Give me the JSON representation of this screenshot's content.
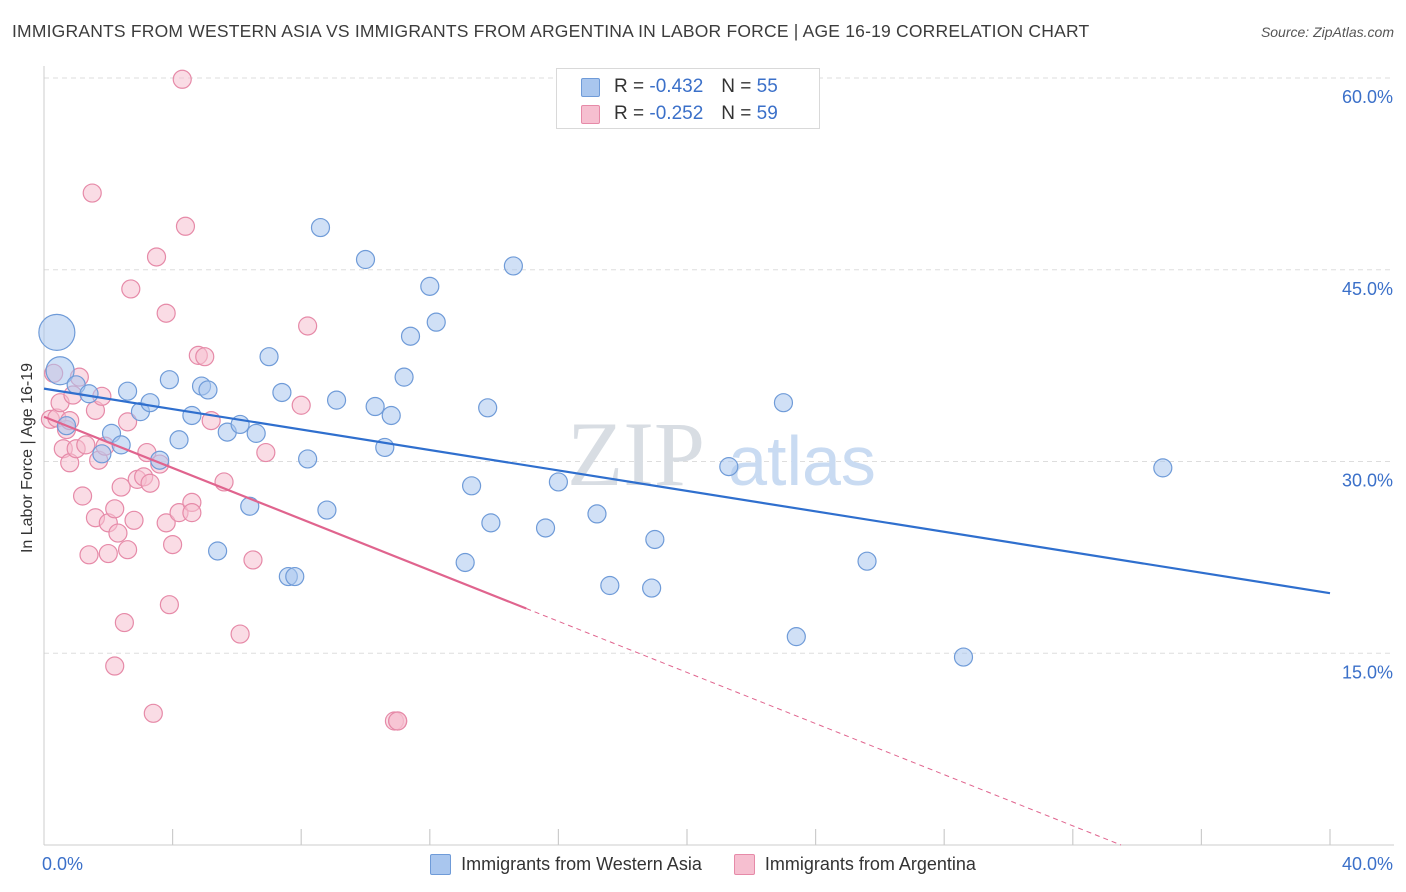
{
  "title": "IMMIGRANTS FROM WESTERN ASIA VS IMMIGRANTS FROM ARGENTINA IN LABOR FORCE | AGE 16-19 CORRELATION CHART",
  "source": "Source: ZipAtlas.com",
  "watermark": {
    "zip": "ZIP",
    "atlas": "atlas"
  },
  "legend_top": {
    "r_label": "R =",
    "n_label": "N =",
    "rows": [
      {
        "r": "-0.432",
        "n": "55"
      },
      {
        "r": "-0.252",
        "n": "59"
      }
    ]
  },
  "colors": {
    "blue_fill": "#a9c6ee",
    "blue_stroke": "#6f9bd8",
    "blue_line": "#2f6fce",
    "pink_fill": "#f6bfd0",
    "pink_stroke": "#e68aa8",
    "pink_line": "#e0648e",
    "grid": "#dddddd",
    "tick_label": "#3b70c9"
  },
  "chart_data": {
    "type": "scatter",
    "title": "IMMIGRANTS FROM WESTERN ASIA VS IMMIGRANTS FROM ARGENTINA IN LABOR FORCE | AGE 16-19 CORRELATION CHART",
    "xlabel": "",
    "ylabel": "In Labor Force | Age 16-19",
    "xlim": [
      0,
      40
    ],
    "ylim": [
      0,
      60
    ],
    "x_tick_labels": [
      "0.0%",
      "40.0%"
    ],
    "y_ticks": [
      15,
      30,
      45,
      60
    ],
    "y_tick_labels": [
      "15.0%",
      "30.0%",
      "45.0%",
      "60.0%"
    ],
    "grid": true,
    "legend_position": "bottom",
    "series": [
      {
        "name": "Immigrants from Western Asia",
        "r": -0.432,
        "n": 55,
        "trend": {
          "x0": 0,
          "y0": 35.7,
          "x1": 40,
          "y1": 19.7
        },
        "points": [
          [
            0.4,
            40.1,
            18
          ],
          [
            0.5,
            37.1,
            14
          ],
          [
            0.7,
            32.8,
            9
          ],
          [
            1.0,
            36.0,
            9
          ],
          [
            1.4,
            35.3,
            9
          ],
          [
            1.8,
            30.6,
            9
          ],
          [
            2.1,
            32.2,
            9
          ],
          [
            2.4,
            31.3,
            9
          ],
          [
            2.6,
            35.5,
            9
          ],
          [
            3.0,
            33.9,
            9
          ],
          [
            3.3,
            34.6,
            9
          ],
          [
            3.6,
            30.1,
            9
          ],
          [
            3.9,
            36.4,
            9
          ],
          [
            4.2,
            31.7,
            9
          ],
          [
            4.6,
            33.6,
            9
          ],
          [
            4.9,
            35.9,
            9
          ],
          [
            5.1,
            35.6,
            9
          ],
          [
            5.4,
            23.0,
            9
          ],
          [
            5.7,
            32.3,
            9
          ],
          [
            6.1,
            32.9,
            9
          ],
          [
            6.4,
            26.5,
            9
          ],
          [
            6.6,
            32.2,
            9
          ],
          [
            7.0,
            38.2,
            9
          ],
          [
            7.4,
            35.4,
            9
          ],
          [
            7.6,
            21.0,
            9
          ],
          [
            7.8,
            21.0,
            9
          ],
          [
            8.2,
            30.2,
            9
          ],
          [
            8.6,
            48.3,
            9
          ],
          [
            8.8,
            26.2,
            9
          ],
          [
            9.1,
            34.8,
            9
          ],
          [
            10.0,
            45.8,
            9
          ],
          [
            10.3,
            34.3,
            9
          ],
          [
            10.6,
            31.1,
            9
          ],
          [
            10.8,
            33.6,
            9
          ],
          [
            11.2,
            36.6,
            9
          ],
          [
            11.4,
            39.8,
            9
          ],
          [
            12.0,
            43.7,
            9
          ],
          [
            12.2,
            40.9,
            9
          ],
          [
            13.1,
            22.1,
            9
          ],
          [
            13.3,
            28.1,
            9
          ],
          [
            13.8,
            34.2,
            9
          ],
          [
            13.9,
            25.2,
            9
          ],
          [
            14.6,
            45.3,
            9
          ],
          [
            15.6,
            24.8,
            9
          ],
          [
            16.0,
            28.4,
            9
          ],
          [
            17.2,
            25.9,
            9
          ],
          [
            17.6,
            20.3,
            9
          ],
          [
            18.9,
            20.1,
            9
          ],
          [
            19.0,
            23.9,
            9
          ],
          [
            21.3,
            29.6,
            9
          ],
          [
            23.0,
            34.6,
            9
          ],
          [
            23.4,
            16.3,
            9
          ],
          [
            25.6,
            22.2,
            9
          ],
          [
            28.6,
            14.7,
            9
          ],
          [
            34.8,
            29.5,
            9
          ]
        ]
      },
      {
        "name": "Immigrants from Argentina",
        "r": -0.252,
        "n": 59,
        "trend": {
          "x0": 0,
          "y0": 33.5,
          "x1": 15.0,
          "y1": 18.5,
          "dash_x1": 40,
          "dash_y1": -6.5
        },
        "points": [
          [
            0.2,
            33.3,
            9
          ],
          [
            0.3,
            36.9,
            9
          ],
          [
            0.4,
            33.4,
            9
          ],
          [
            0.5,
            34.6,
            9
          ],
          [
            0.6,
            31.0,
            9
          ],
          [
            0.7,
            32.5,
            9
          ],
          [
            0.8,
            33.2,
            9
          ],
          [
            0.8,
            29.9,
            9
          ],
          [
            0.9,
            35.2,
            9
          ],
          [
            1.0,
            31.0,
            9
          ],
          [
            1.1,
            36.6,
            9
          ],
          [
            1.2,
            27.3,
            9
          ],
          [
            1.3,
            31.3,
            9
          ],
          [
            1.4,
            22.7,
            9
          ],
          [
            1.5,
            51.0,
            9
          ],
          [
            1.6,
            34.0,
            9
          ],
          [
            1.6,
            25.6,
            9
          ],
          [
            1.7,
            30.1,
            9
          ],
          [
            1.8,
            35.1,
            9
          ],
          [
            1.9,
            31.2,
            9
          ],
          [
            2.0,
            25.2,
            9
          ],
          [
            2.0,
            22.8,
            9
          ],
          [
            2.2,
            26.3,
            9
          ],
          [
            2.2,
            14.0,
            9
          ],
          [
            2.3,
            24.4,
            9
          ],
          [
            2.4,
            28.0,
            9
          ],
          [
            2.5,
            17.4,
            9
          ],
          [
            2.6,
            23.1,
            9
          ],
          [
            2.6,
            33.1,
            9
          ],
          [
            2.7,
            43.5,
            9
          ],
          [
            2.8,
            25.4,
            9
          ],
          [
            2.9,
            28.6,
            9
          ],
          [
            3.1,
            28.8,
            9
          ],
          [
            3.2,
            30.7,
            9
          ],
          [
            3.3,
            28.3,
            9
          ],
          [
            3.4,
            10.3,
            9
          ],
          [
            3.5,
            46.0,
            9
          ],
          [
            3.6,
            29.8,
            9
          ],
          [
            3.8,
            41.6,
            9
          ],
          [
            3.8,
            25.2,
            9
          ],
          [
            3.9,
            18.8,
            9
          ],
          [
            4.0,
            23.5,
            9
          ],
          [
            4.2,
            26.0,
            9
          ],
          [
            4.3,
            59.9,
            9
          ],
          [
            4.4,
            48.4,
            9
          ],
          [
            4.6,
            26.8,
            9
          ],
          [
            4.6,
            26.0,
            9
          ],
          [
            4.8,
            38.3,
            9
          ],
          [
            5.0,
            38.2,
            9
          ],
          [
            5.2,
            33.2,
            9
          ],
          [
            5.6,
            28.4,
            9
          ],
          [
            6.1,
            16.5,
            9
          ],
          [
            6.5,
            22.3,
            9
          ],
          [
            6.9,
            30.7,
            9
          ],
          [
            8.0,
            34.4,
            9
          ],
          [
            8.2,
            40.6,
            9
          ],
          [
            10.9,
            9.7,
            9
          ],
          [
            11.0,
            9.7,
            9
          ],
          [
            11.0,
            9.7,
            9
          ]
        ]
      }
    ]
  }
}
